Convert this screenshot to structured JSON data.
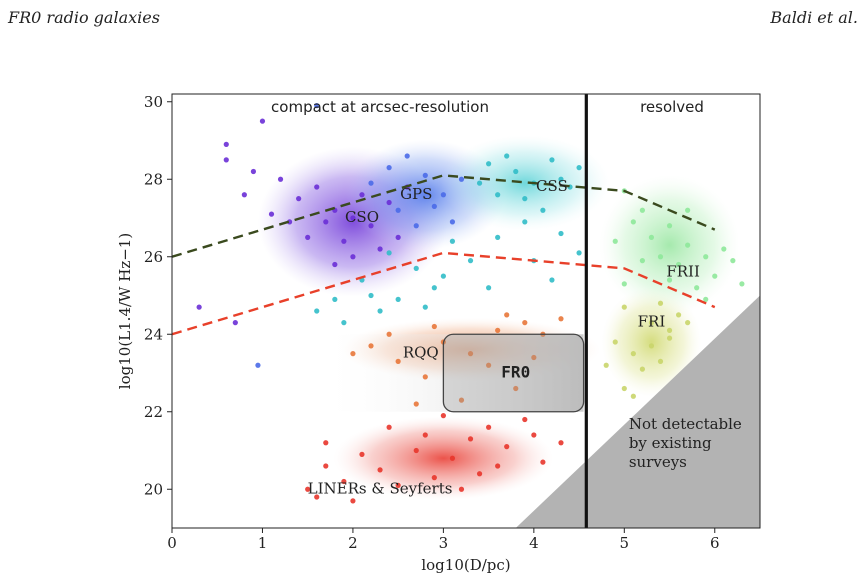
{
  "header": {
    "left_title": "FR0 radio galaxies",
    "right_authors": "Baldi et al."
  },
  "chart_data": {
    "type": "scatter",
    "xlabel": "log10(D/pc)",
    "ylabel": "log10(L1.4/W Hz−1)",
    "xlim": [
      0,
      6.5
    ],
    "ylim": [
      19,
      30.2
    ],
    "x_ticks": [
      "0",
      "1",
      "2",
      "3",
      "4",
      "5",
      "6"
    ],
    "y_ticks": [
      "20",
      "22",
      "24",
      "26",
      "28",
      "30"
    ],
    "grid": false,
    "top_labels": {
      "left": "compact at arcsec-resolution",
      "right": "resolved"
    },
    "divider_x": 4.58,
    "region_labels": [
      {
        "text": "CSO",
        "x": 2.1,
        "y": 27.0
      },
      {
        "text": "GPS",
        "x": 2.7,
        "y": 27.6
      },
      {
        "text": "CSS",
        "x": 4.2,
        "y": 27.8
      },
      {
        "text": "FRII",
        "x": 5.65,
        "y": 25.6
      },
      {
        "text": "FRI",
        "x": 5.3,
        "y": 24.3
      },
      {
        "text": "RQQ",
        "x": 2.75,
        "y": 23.5
      },
      {
        "text": "FR0",
        "x": 3.8,
        "y": 23.0
      },
      {
        "text": "LINERs & Seyferts",
        "x": 2.3,
        "y": 20.0
      }
    ],
    "not_detectable_label": [
      "Not detectable",
      "by existing",
      "surveys"
    ],
    "green_dashed": {
      "color": "#3a4a1e",
      "x": [
        0,
        3.0,
        5.0,
        6.0
      ],
      "y": [
        26.0,
        28.1,
        27.7,
        26.7
      ]
    },
    "red_dashed": {
      "color": "#e8402a",
      "x": [
        0,
        3.0,
        5.0,
        6.0
      ],
      "y": [
        24.0,
        26.1,
        25.7,
        24.7
      ]
    },
    "fr0_box": {
      "x": [
        3.0,
        4.55
      ],
      "y": [
        22.0,
        24.0
      ]
    },
    "series": [
      {
        "group": "CSO",
        "color": "#6a2fd6",
        "points": [
          [
            0.6,
            28.9
          ],
          [
            0.6,
            28.5
          ],
          [
            1.0,
            29.5
          ],
          [
            0.9,
            28.2
          ],
          [
            1.2,
            28.0
          ],
          [
            1.4,
            27.5
          ],
          [
            1.6,
            27.8
          ],
          [
            1.8,
            27.2
          ],
          [
            2.0,
            27.0
          ],
          [
            2.2,
            26.8
          ],
          [
            1.9,
            26.4
          ],
          [
            2.4,
            27.4
          ],
          [
            1.7,
            26.9
          ],
          [
            2.1,
            27.6
          ],
          [
            1.5,
            26.5
          ],
          [
            2.3,
            26.2
          ],
          [
            1.8,
            25.8
          ],
          [
            2.6,
            27.8
          ],
          [
            2.0,
            26.0
          ],
          [
            0.8,
            27.6
          ],
          [
            1.3,
            26.9
          ],
          [
            2.5,
            26.5
          ],
          [
            0.7,
            24.3
          ],
          [
            0.3,
            24.7
          ],
          [
            1.1,
            27.1
          ]
        ]
      },
      {
        "group": "GPS",
        "color": "#4a6ae8",
        "points": [
          [
            1.6,
            29.9
          ],
          [
            2.4,
            28.3
          ],
          [
            2.8,
            28.1
          ],
          [
            3.0,
            27.6
          ],
          [
            2.5,
            27.2
          ],
          [
            2.2,
            27.9
          ],
          [
            3.2,
            28.0
          ],
          [
            2.7,
            26.8
          ],
          [
            0.95,
            23.2
          ],
          [
            2.9,
            27.3
          ],
          [
            3.1,
            26.9
          ],
          [
            2.6,
            28.6
          ]
        ]
      },
      {
        "group": "CSS",
        "color": "#31bcc8",
        "points": [
          [
            3.5,
            28.4
          ],
          [
            3.8,
            28.2
          ],
          [
            4.0,
            27.9
          ],
          [
            4.2,
            28.5
          ],
          [
            3.9,
            27.5
          ],
          [
            4.4,
            27.8
          ],
          [
            4.3,
            28.0
          ],
          [
            3.6,
            27.6
          ],
          [
            4.5,
            28.3
          ],
          [
            3.7,
            28.6
          ],
          [
            4.1,
            27.2
          ],
          [
            3.4,
            27.9
          ],
          [
            2.4,
            26.1
          ],
          [
            2.7,
            25.7
          ],
          [
            2.1,
            25.4
          ],
          [
            3.0,
            25.5
          ],
          [
            2.5,
            24.9
          ],
          [
            1.8,
            24.9
          ],
          [
            2.9,
            25.2
          ],
          [
            3.3,
            25.9
          ],
          [
            3.6,
            26.5
          ],
          [
            4.0,
            25.9
          ],
          [
            4.3,
            26.6
          ],
          [
            1.6,
            24.6
          ],
          [
            2.2,
            25.0
          ],
          [
            3.1,
            26.4
          ],
          [
            2.8,
            24.7
          ],
          [
            1.9,
            24.3
          ],
          [
            2.3,
            24.6
          ],
          [
            3.5,
            25.2
          ],
          [
            4.5,
            26.1
          ],
          [
            3.9,
            26.9
          ],
          [
            4.2,
            25.4
          ]
        ]
      },
      {
        "group": "FRII",
        "color": "#8ee89a",
        "points": [
          [
            5.0,
            27.7
          ],
          [
            5.2,
            27.2
          ],
          [
            5.5,
            26.8
          ],
          [
            5.7,
            26.3
          ],
          [
            5.9,
            26.0
          ],
          [
            5.3,
            26.5
          ],
          [
            5.6,
            25.8
          ],
          [
            6.0,
            25.5
          ],
          [
            5.4,
            26.0
          ],
          [
            5.8,
            25.2
          ],
          [
            6.2,
            25.9
          ],
          [
            5.1,
            26.9
          ],
          [
            5.7,
            27.2
          ],
          [
            6.1,
            26.2
          ],
          [
            5.5,
            25.4
          ],
          [
            4.9,
            26.4
          ],
          [
            5.2,
            25.9
          ],
          [
            5.9,
            24.9
          ],
          [
            6.3,
            25.3
          ],
          [
            5.0,
            25.3
          ]
        ]
      },
      {
        "group": "FRI",
        "color": "#c9d56a",
        "points": [
          [
            5.0,
            24.7
          ],
          [
            5.3,
            24.3
          ],
          [
            5.5,
            23.9
          ],
          [
            5.1,
            23.5
          ],
          [
            5.4,
            24.8
          ],
          [
            5.6,
            24.5
          ],
          [
            5.2,
            23.1
          ],
          [
            5.0,
            22.6
          ],
          [
            4.9,
            23.8
          ],
          [
            5.3,
            23.7
          ],
          [
            5.5,
            24.1
          ],
          [
            5.7,
            24.3
          ],
          [
            5.1,
            22.4
          ],
          [
            4.8,
            23.2
          ],
          [
            5.4,
            23.3
          ]
        ]
      },
      {
        "group": "RQQ",
        "color": "#e8773a",
        "points": [
          [
            2.2,
            23.7
          ],
          [
            2.5,
            23.3
          ],
          [
            2.8,
            22.9
          ],
          [
            3.0,
            23.8
          ],
          [
            3.3,
            23.5
          ],
          [
            3.6,
            24.1
          ],
          [
            3.9,
            24.3
          ],
          [
            4.1,
            24.0
          ],
          [
            4.3,
            24.4
          ],
          [
            2.9,
            24.2
          ],
          [
            3.5,
            23.2
          ],
          [
            3.8,
            22.6
          ],
          [
            3.2,
            22.3
          ],
          [
            2.7,
            22.2
          ],
          [
            4.0,
            23.4
          ],
          [
            2.4,
            24.0
          ],
          [
            3.7,
            24.5
          ],
          [
            2.0,
            23.5
          ]
        ]
      },
      {
        "group": "LINERs & Seyferts",
        "color": "#e8352b",
        "points": [
          [
            1.5,
            20.0
          ],
          [
            1.6,
            19.8
          ],
          [
            1.9,
            20.2
          ],
          [
            2.1,
            20.9
          ],
          [
            2.3,
            20.5
          ],
          [
            2.5,
            20.1
          ],
          [
            2.7,
            21.0
          ],
          [
            2.9,
            20.3
          ],
          [
            3.1,
            20.8
          ],
          [
            3.3,
            21.3
          ],
          [
            3.5,
            21.6
          ],
          [
            3.7,
            21.1
          ],
          [
            3.9,
            21.8
          ],
          [
            4.1,
            20.7
          ],
          [
            4.3,
            21.2
          ],
          [
            3.4,
            20.4
          ],
          [
            3.0,
            21.9
          ],
          [
            2.0,
            19.7
          ],
          [
            1.7,
            20.6
          ],
          [
            2.4,
            21.6
          ],
          [
            3.6,
            20.6
          ],
          [
            4.0,
            21.4
          ],
          [
            1.7,
            21.2
          ],
          [
            2.8,
            21.4
          ],
          [
            3.2,
            20.0
          ]
        ]
      }
    ]
  }
}
